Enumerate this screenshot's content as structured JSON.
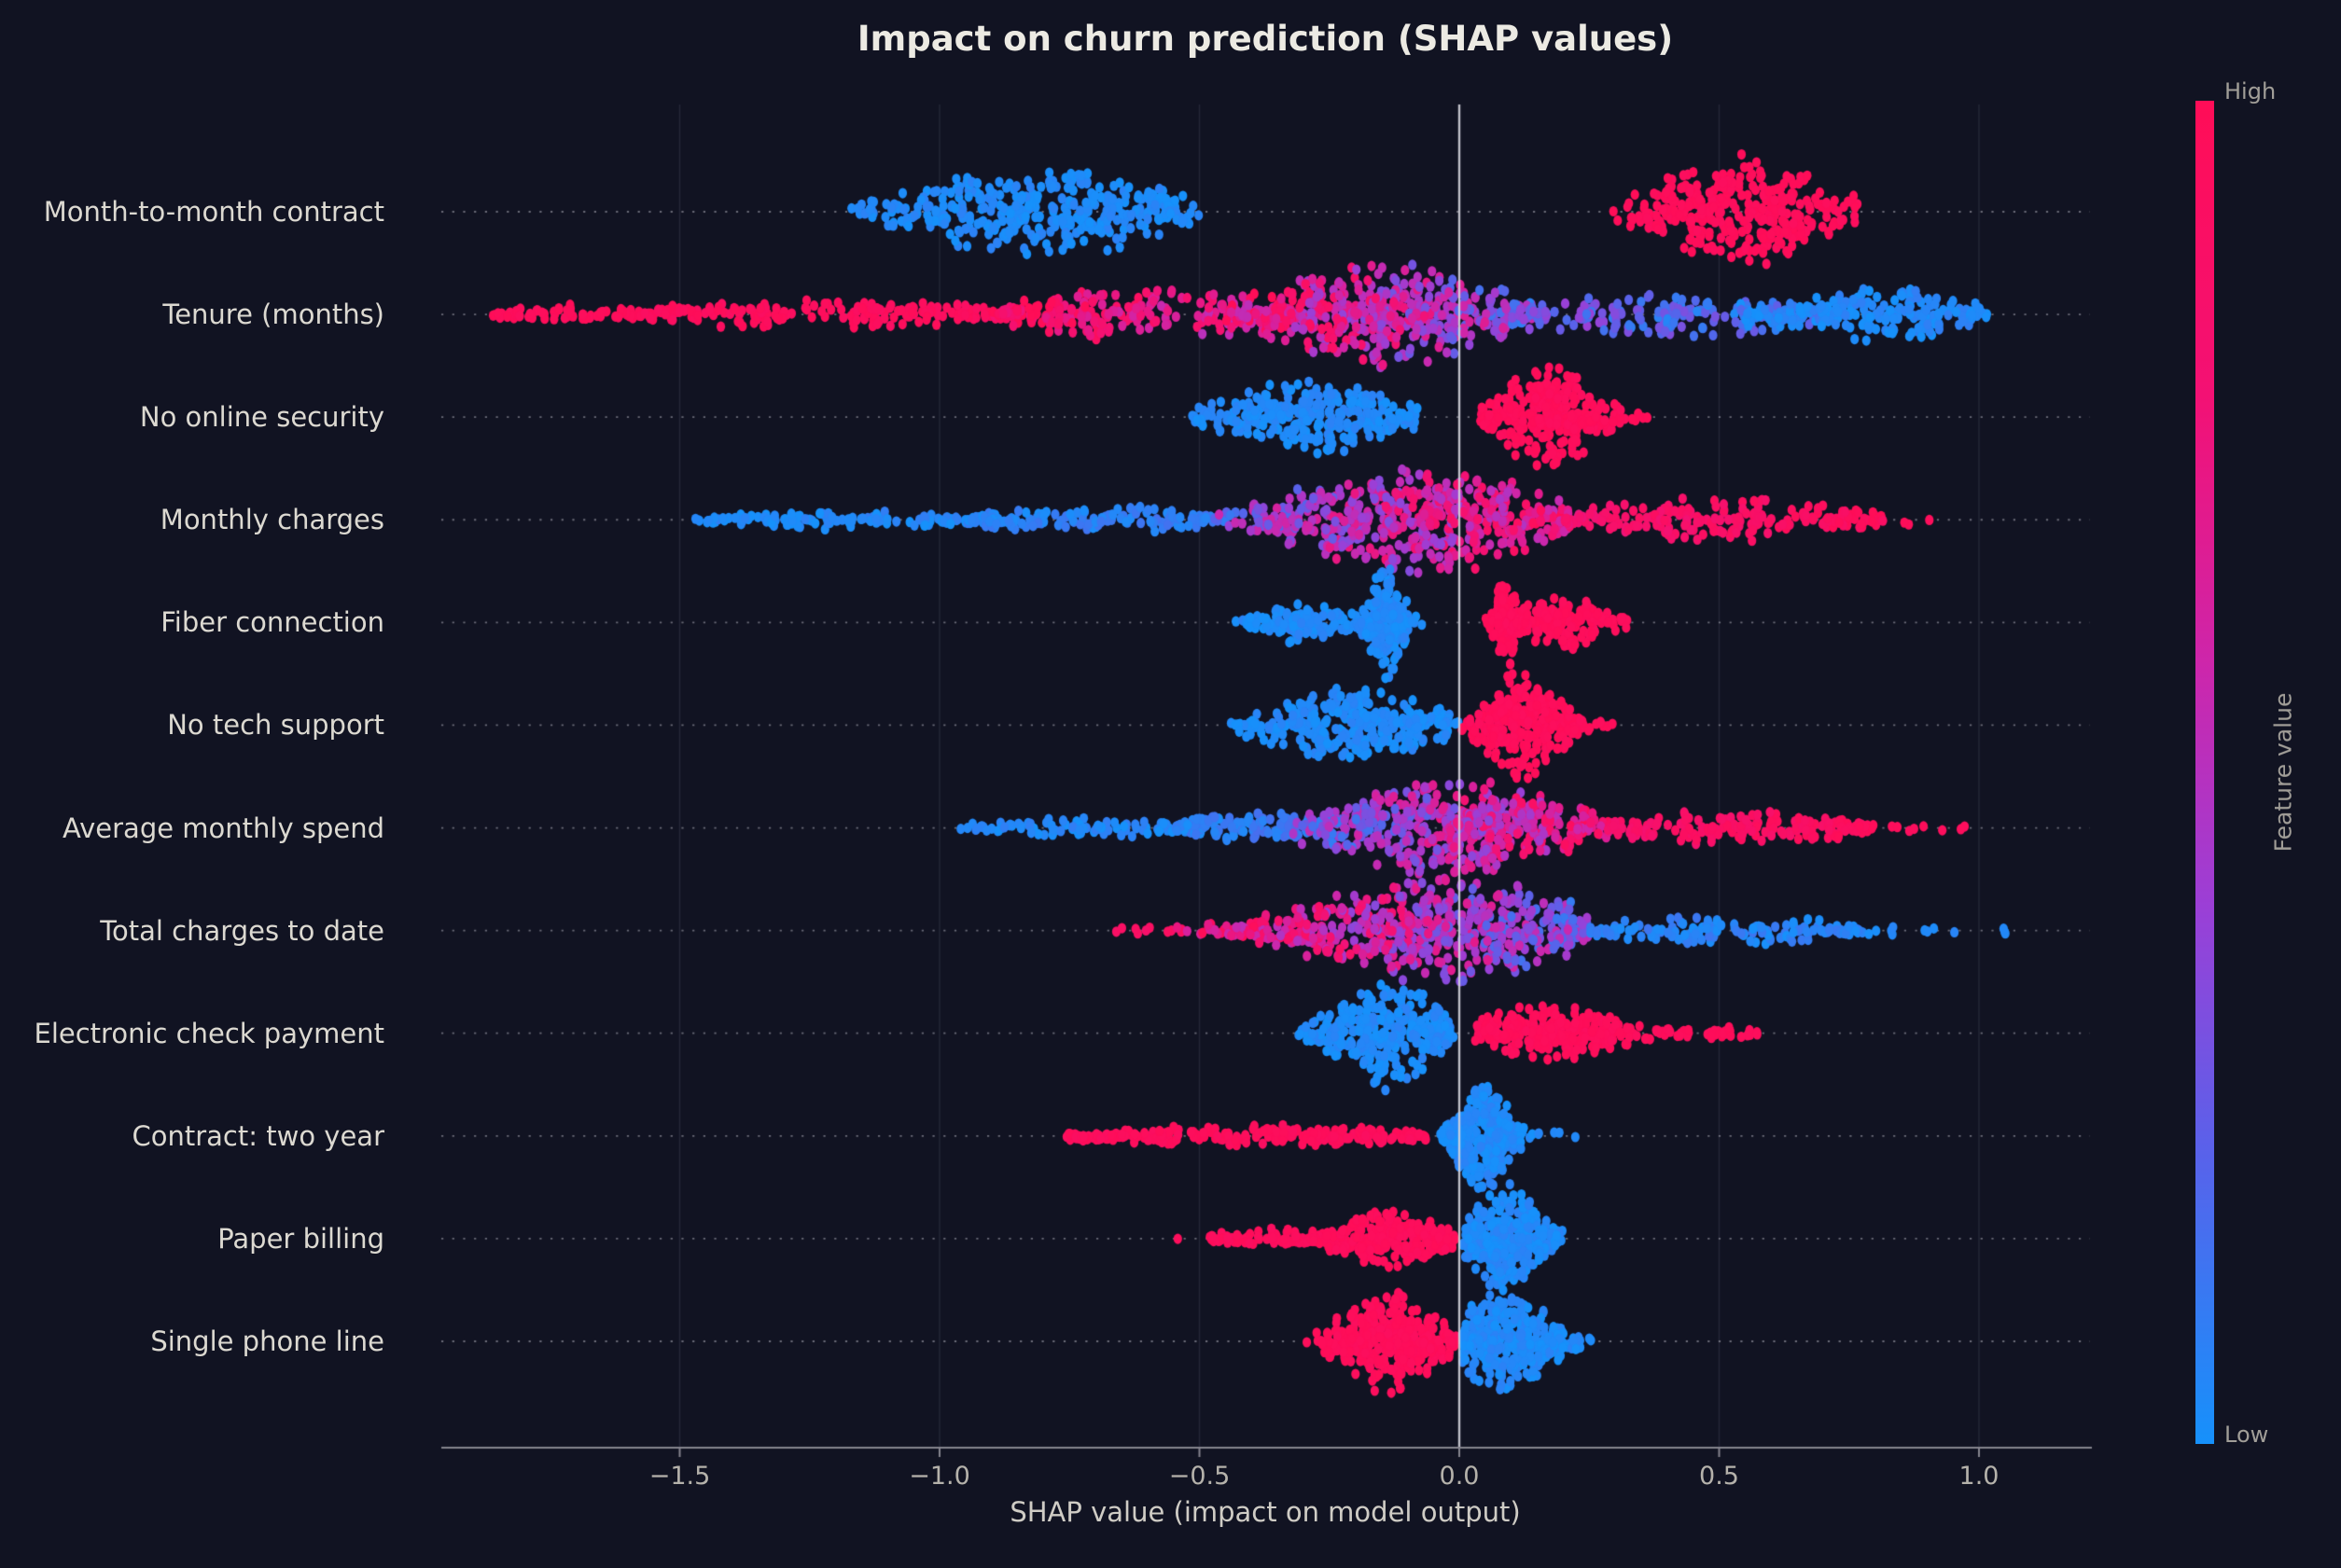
{
  "theme": {
    "background": "#111322",
    "title_color": "#ECEAE3",
    "label_color": "#DCD9D1",
    "tick_color": "#B5B2AB",
    "xlabel_color": "#CFCCC5",
    "axis_color": "#85848E",
    "zero_line_color": "rgba(212,212,220,0.9)",
    "vgrid_color": "rgba(165,170,190,0.13)",
    "grid_dot_color": "rgba(197,197,207,0.5)",
    "cbar_text_color": "#A19E98",
    "high_color": "#FF0D57",
    "low_color": "#1691FB"
  },
  "chart_data": {
    "type": "beeswarm",
    "title": "Impact on churn prediction (SHAP values)",
    "xlabel": "SHAP value (impact on model output)",
    "xticks": [
      {
        "value": -1.5,
        "label": "−1.5"
      },
      {
        "value": -1.0,
        "label": "−1.0"
      },
      {
        "value": -0.5,
        "label": "−0.5"
      },
      {
        "value": 0.0,
        "label": "0.0"
      },
      {
        "value": 0.5,
        "label": "0.5"
      },
      {
        "value": 1.0,
        "label": "1.0"
      }
    ],
    "xlim": [
      -1.96,
      1.21
    ],
    "zero_line": 0.0,
    "grid": "horizontal-dotted, faint vertical at ticks",
    "colorbar": {
      "label": "Feature value",
      "high_label": "High",
      "low_label": "Low",
      "stops": [
        {
          "p": 0.0,
          "c": "#1691FB"
        },
        {
          "p": 0.22,
          "c": "#5A61EA"
        },
        {
          "p": 0.4,
          "c": "#9B3FD6"
        },
        {
          "p": 0.58,
          "c": "#CD26AB"
        },
        {
          "p": 0.78,
          "c": "#F31174"
        },
        {
          "p": 1.0,
          "c": "#FF0D57"
        }
      ]
    },
    "features": [
      {
        "label": "Month-to-month contract",
        "clusters": [
          {
            "x0": -1.18,
            "x1": -0.5,
            "mode": -0.8,
            "h": 54,
            "n": 380,
            "shape": "violin",
            "t0": 0.03,
            "t1": 0.03,
            "jit": 0.08
          },
          {
            "x0": 0.29,
            "x1": 0.77,
            "mode": 0.54,
            "h": 62,
            "n": 340,
            "shape": "violin",
            "t0": 0.97,
            "t1": 0.97,
            "jit": 0.05
          }
        ]
      },
      {
        "label": "Tenure (months)",
        "clusters": [
          {
            "x0": -1.86,
            "x1": -1.55,
            "mode": -1.7,
            "h": 8,
            "n": 70,
            "shape": "band",
            "t0": 0.97,
            "t1": 0.97,
            "jit": 0.05
          },
          {
            "x0": -1.58,
            "x1": -0.85,
            "mode": -1.2,
            "h": 15,
            "n": 190,
            "shape": "band",
            "t0": 0.96,
            "t1": 0.94,
            "jit": 0.08
          },
          {
            "x0": -0.9,
            "x1": -0.3,
            "mode": -0.45,
            "h": 26,
            "n": 240,
            "shape": "band",
            "t0": 0.95,
            "t1": 0.55,
            "jit": 0.35
          },
          {
            "x0": -0.45,
            "x1": 0.18,
            "mode": -0.15,
            "h": 60,
            "n": 480,
            "shape": "violin",
            "t0": 0.8,
            "t1": 0.3,
            "jit": 0.55
          },
          {
            "x0": 0.1,
            "x1": 0.72,
            "mode": 0.35,
            "h": 22,
            "n": 190,
            "shape": "band",
            "t0": 0.3,
            "t1": 0.08,
            "jit": 0.3
          },
          {
            "x0": 0.55,
            "x1": 1.02,
            "mode": 0.82,
            "h": 30,
            "n": 190,
            "shape": "violin",
            "t0": 0.04,
            "t1": 0.04,
            "jit": 0.1
          },
          {
            "x0": 0.98,
            "x1": 1.0,
            "mode": 0.99,
            "h": 3,
            "n": 2,
            "shape": "band",
            "t0": 0.03,
            "t1": 0.03,
            "jit": 0.04
          }
        ]
      },
      {
        "label": "No online security",
        "clusters": [
          {
            "x0": -0.53,
            "x1": -0.08,
            "mode": -0.28,
            "h": 42,
            "n": 300,
            "shape": "violin",
            "t0": 0.03,
            "t1": 0.03,
            "jit": 0.08
          },
          {
            "x0": 0.04,
            "x1": 0.4,
            "mode": 0.17,
            "h": 58,
            "n": 280,
            "shape": "spike",
            "t0": 0.97,
            "t1": 0.97,
            "jit": 0.05
          }
        ]
      },
      {
        "label": "Monthly charges",
        "clusters": [
          {
            "x0": -1.47,
            "x1": -0.9,
            "mode": -1.2,
            "h": 8,
            "n": 120,
            "shape": "band",
            "t0": 0.04,
            "t1": 0.04,
            "jit": 0.1
          },
          {
            "x0": -0.95,
            "x1": -0.45,
            "mode": -0.7,
            "h": 13,
            "n": 150,
            "shape": "band",
            "t0": 0.05,
            "t1": 0.1,
            "jit": 0.12
          },
          {
            "x0": -0.5,
            "x1": 0.22,
            "mode": -0.08,
            "h": 62,
            "n": 520,
            "shape": "violin",
            "t0": 0.3,
            "t1": 0.8,
            "jit": 0.5
          },
          {
            "x0": 0.2,
            "x1": 0.82,
            "mode": 0.4,
            "h": 22,
            "n": 210,
            "shape": "band",
            "t0": 0.8,
            "t1": 0.97,
            "jit": 0.15
          },
          {
            "x0": 0.84,
            "x1": 0.91,
            "mode": 0.87,
            "h": 3,
            "n": 3,
            "shape": "band",
            "t0": 0.97,
            "t1": 0.97,
            "jit": 0.04
          }
        ]
      },
      {
        "label": "Fiber connection",
        "clusters": [
          {
            "x0": -0.43,
            "x1": -0.17,
            "mode": -0.3,
            "h": 20,
            "n": 130,
            "shape": "violin",
            "t0": 0.03,
            "t1": 0.03,
            "jit": 0.08
          },
          {
            "x0": -0.2,
            "x1": -0.06,
            "mode": -0.14,
            "h": 62,
            "n": 200,
            "shape": "spike",
            "t0": 0.03,
            "t1": 0.03,
            "jit": 0.08
          },
          {
            "x0": 0.05,
            "x1": 0.14,
            "mode": 0.09,
            "h": 52,
            "n": 120,
            "shape": "spike",
            "t0": 0.97,
            "t1": 0.97,
            "jit": 0.05
          },
          {
            "x0": 0.12,
            "x1": 0.34,
            "mode": 0.2,
            "h": 30,
            "n": 150,
            "shape": "violin",
            "t0": 0.97,
            "t1": 0.97,
            "jit": 0.05
          }
        ]
      },
      {
        "label": "No tech support",
        "clusters": [
          {
            "x0": -0.44,
            "x1": 0.0,
            "mode": -0.21,
            "h": 40,
            "n": 320,
            "shape": "violin",
            "t0": 0.03,
            "t1": 0.03,
            "jit": 0.08
          },
          {
            "x0": 0.005,
            "x1": 0.3,
            "mode": 0.125,
            "h": 60,
            "n": 280,
            "shape": "spike",
            "t0": 0.97,
            "t1": 0.97,
            "jit": 0.05
          }
        ]
      },
      {
        "label": "Average monthly spend",
        "clusters": [
          {
            "x0": -0.96,
            "x1": -0.5,
            "mode": -0.7,
            "h": 8,
            "n": 100,
            "shape": "band",
            "t0": 0.04,
            "t1": 0.04,
            "jit": 0.1
          },
          {
            "x0": -0.55,
            "x1": -0.25,
            "mode": -0.4,
            "h": 14,
            "n": 130,
            "shape": "band",
            "t0": 0.05,
            "t1": 0.15,
            "jit": 0.15
          },
          {
            "x0": -0.32,
            "x1": 0.3,
            "mode": -0.02,
            "h": 60,
            "n": 520,
            "shape": "violin",
            "t0": 0.25,
            "t1": 0.8,
            "jit": 0.5
          },
          {
            "x0": 0.28,
            "x1": 0.8,
            "mode": 0.45,
            "h": 16,
            "n": 170,
            "shape": "band",
            "t0": 0.85,
            "t1": 0.95,
            "jit": 0.12
          },
          {
            "x0": 0.8,
            "x1": 0.98,
            "mode": 0.9,
            "h": 4,
            "n": 8,
            "shape": "band",
            "t0": 0.95,
            "t1": 0.95,
            "jit": 0.06
          }
        ]
      },
      {
        "label": "Total charges to date",
        "clusters": [
          {
            "x0": -0.67,
            "x1": -0.52,
            "mode": -0.6,
            "h": 4,
            "n": 10,
            "shape": "band",
            "t0": 0.9,
            "t1": 0.9,
            "jit": 0.1
          },
          {
            "x0": -0.55,
            "x1": 0.25,
            "mode": -0.03,
            "h": 58,
            "n": 560,
            "shape": "violin",
            "t0": 0.85,
            "t1": 0.3,
            "jit": 0.5
          },
          {
            "x0": 0.25,
            "x1": 0.78,
            "mode": 0.45,
            "h": 14,
            "n": 150,
            "shape": "band",
            "t0": 0.08,
            "t1": 0.05,
            "jit": 0.12
          },
          {
            "x0": 0.78,
            "x1": 1.07,
            "mode": 0.9,
            "h": 4,
            "n": 12,
            "shape": "band",
            "t0": 0.04,
            "t1": 0.04,
            "jit": 0.06
          }
        ]
      },
      {
        "label": "Electronic check payment",
        "clusters": [
          {
            "x0": -0.31,
            "x1": -0.01,
            "mode": -0.14,
            "h": 60,
            "n": 320,
            "shape": "violin",
            "t0": 0.03,
            "t1": 0.03,
            "jit": 0.08
          },
          {
            "x0": 0.03,
            "x1": 0.4,
            "mode": 0.17,
            "h": 30,
            "n": 260,
            "shape": "violin",
            "t0": 0.97,
            "t1": 0.97,
            "jit": 0.05
          },
          {
            "x0": 0.38,
            "x1": 0.58,
            "mode": 0.46,
            "h": 6,
            "n": 40,
            "shape": "band",
            "t0": 0.97,
            "t1": 0.97,
            "jit": 0.04
          }
        ]
      },
      {
        "label": "Contract: two year",
        "clusters": [
          {
            "x0": -0.76,
            "x1": -0.06,
            "mode": -0.5,
            "h": 9,
            "n": 250,
            "shape": "band",
            "t0": 0.96,
            "t1": 0.96,
            "jit": 0.06
          },
          {
            "x0": -0.04,
            "x1": 0.16,
            "mode": 0.045,
            "h": 64,
            "n": 300,
            "shape": "spike",
            "t0": 0.03,
            "t1": 0.03,
            "jit": 0.08
          },
          {
            "x0": 0.17,
            "x1": 0.24,
            "mode": 0.2,
            "h": 3,
            "n": 3,
            "shape": "band",
            "t0": 0.03,
            "t1": 0.03,
            "jit": 0.04
          }
        ]
      },
      {
        "label": "Paper billing",
        "clusters": [
          {
            "x0": -0.56,
            "x1": -0.54,
            "mode": -0.55,
            "h": 2,
            "n": 1,
            "shape": "band",
            "t0": 0.97,
            "t1": 0.97,
            "jit": 0.02
          },
          {
            "x0": -0.48,
            "x1": -0.25,
            "mode": -0.35,
            "h": 8,
            "n": 80,
            "shape": "band",
            "t0": 0.96,
            "t1": 0.96,
            "jit": 0.06
          },
          {
            "x0": -0.3,
            "x1": 0.0,
            "mode": -0.13,
            "h": 30,
            "n": 260,
            "shape": "violin",
            "t0": 0.97,
            "t1": 0.97,
            "jit": 0.05
          },
          {
            "x0": 0.005,
            "x1": 0.21,
            "mode": 0.09,
            "h": 58,
            "n": 320,
            "shape": "violin",
            "t0": 0.03,
            "t1": 0.03,
            "jit": 0.08
          }
        ]
      },
      {
        "label": "Single phone line",
        "clusters": [
          {
            "x0": -0.31,
            "x1": -0.29,
            "mode": -0.3,
            "h": 2,
            "n": 1,
            "shape": "band",
            "t0": 0.97,
            "t1": 0.97,
            "jit": 0.02
          },
          {
            "x0": -0.28,
            "x1": 0.0,
            "mode": -0.135,
            "h": 56,
            "n": 330,
            "shape": "violin",
            "t0": 0.97,
            "t1": 0.97,
            "jit": 0.05
          },
          {
            "x0": 0.005,
            "x1": 0.26,
            "mode": 0.085,
            "h": 58,
            "n": 360,
            "shape": "violin",
            "t0": 0.03,
            "t1": 0.03,
            "jit": 0.08
          }
        ]
      }
    ]
  }
}
